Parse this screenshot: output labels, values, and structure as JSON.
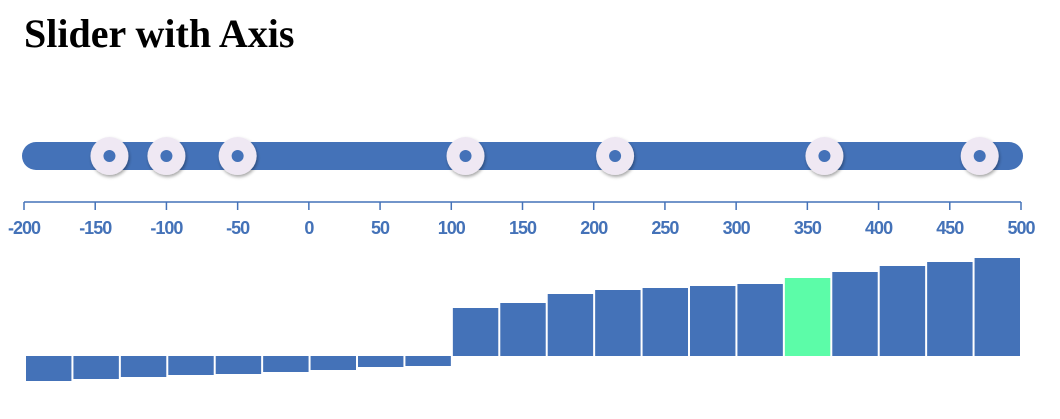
{
  "title": "Slider with Axis",
  "colors": {
    "track": "#4472b8",
    "handle_fill": "#efe8f3",
    "handle_dot": "#4472b8",
    "axis": "#4472b8",
    "bar": "#4472b8",
    "highlight_bar": "#5cfca8"
  },
  "chart_data": {
    "type": "bar",
    "slider": {
      "domain": [
        -200,
        500
      ],
      "handle_values": [
        -140,
        -100,
        -50,
        110,
        215,
        362,
        471
      ]
    },
    "axis": {
      "ticks": [
        -200,
        -150,
        -100,
        -50,
        0,
        50,
        100,
        150,
        200,
        250,
        300,
        350,
        400,
        450,
        500
      ],
      "tick_labels": [
        "-200",
        "-150",
        "-100",
        "-50",
        "0",
        "50",
        "100",
        "150",
        "200",
        "250",
        "300",
        "350",
        "400",
        "450",
        "500"
      ]
    },
    "bars": {
      "values": [
        -25,
        -23,
        -21,
        -19,
        -18,
        -16,
        -14,
        -11,
        -10,
        48,
        53,
        62,
        66,
        68,
        70,
        72,
        78,
        84,
        90,
        94,
        98
      ],
      "highlight_index": 16
    }
  }
}
